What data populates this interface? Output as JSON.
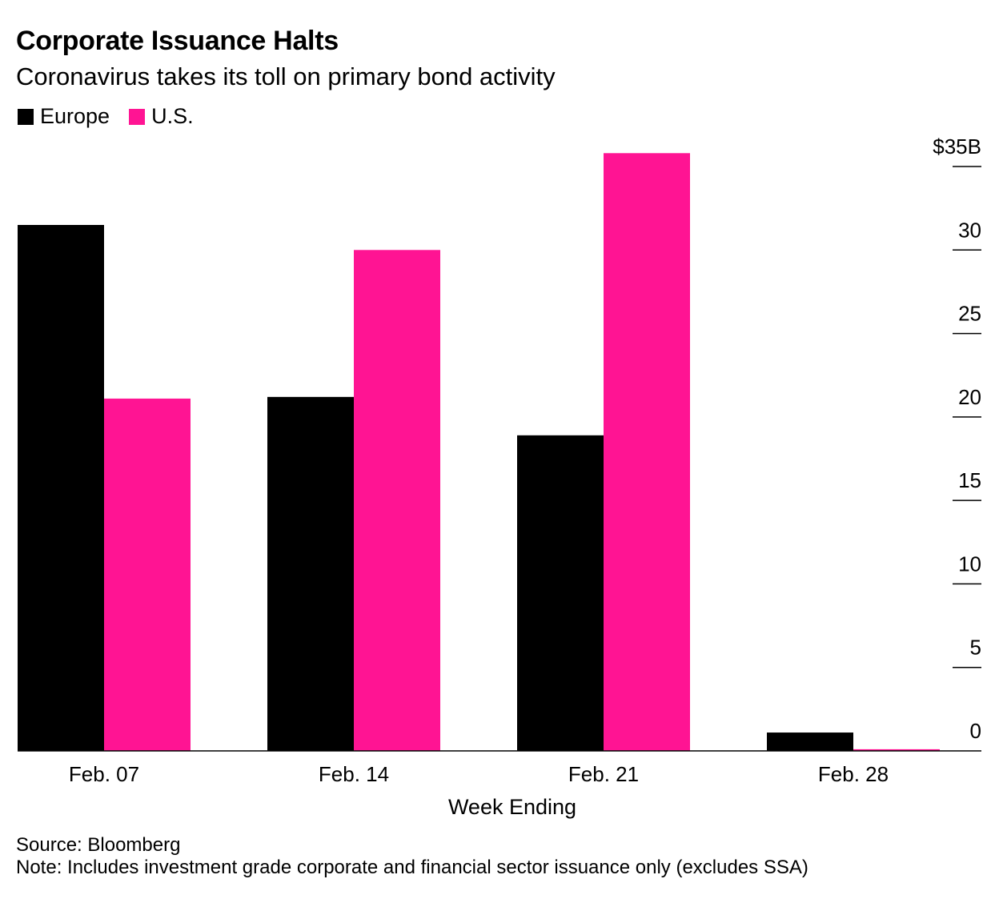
{
  "title": "Corporate Issuance Halts",
  "subtitle": "Coronavirus takes its toll on primary bond activity",
  "legend": [
    {
      "label": "Europe",
      "color": "#000000"
    },
    {
      "label": "U.S.",
      "color": "#ff1493"
    }
  ],
  "source": "Source: Bloomberg",
  "note": "Note: Includes investment grade corporate and financial sector issuance only (excludes SSA)",
  "chart_data": {
    "type": "bar",
    "title": "Corporate Issuance Halts",
    "subtitle": "Coronavirus takes its toll on primary bond activity",
    "xlabel": "Week Ending",
    "ylabel": "",
    "categories": [
      "Feb. 07",
      "Feb. 14",
      "Feb. 21",
      "Feb. 28"
    ],
    "series": [
      {
        "name": "Europe",
        "color": "#000000",
        "values": [
          31.5,
          21.2,
          18.9,
          1.1
        ]
      },
      {
        "name": "U.S.",
        "color": "#ff1493",
        "values": [
          21.1,
          30.0,
          35.8,
          0.1
        ]
      }
    ],
    "ylim": [
      0,
      35
    ],
    "yticks": [
      0,
      5,
      10,
      15,
      20,
      25,
      30,
      35
    ],
    "ytick_labels": [
      "0",
      "5",
      "10",
      "15",
      "20",
      "25",
      "30",
      "$35B"
    ],
    "y_axis_position": "right",
    "grid": false,
    "legend_position": "top-left"
  }
}
